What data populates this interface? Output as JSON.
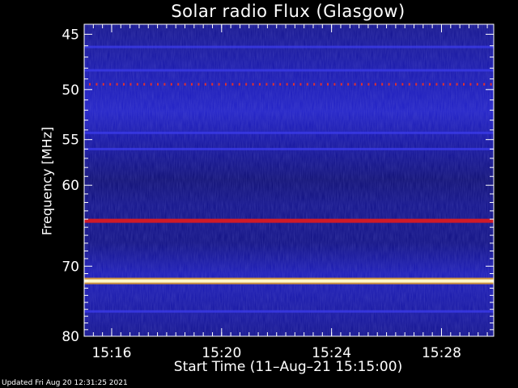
{
  "chart_data": {
    "type": "heatmap",
    "title": "Solar radio Flux (Glasgow)",
    "xlabel": "Start Time (11–Aug–21 15:15:00)",
    "ylabel": "Frequency [MHz]",
    "footer": "Updated Fri Aug 20 12:31:25 2021",
    "x_ticks": [
      "15:16",
      "15:20",
      "15:24",
      "15:28"
    ],
    "y_ticks": [
      45,
      50,
      55,
      60,
      70,
      80
    ],
    "colormap": [
      "#000000",
      "#0a0a6e",
      "#1a1ad2",
      "#c81a2a",
      "#ffd040",
      "#ffffff"
    ],
    "bands": [
      {
        "freq_mhz": 46.1,
        "intensity": "moderate"
      },
      {
        "freq_mhz": 48.2,
        "intensity": "moderate"
      },
      {
        "freq_mhz": 49.5,
        "intensity": "high",
        "pattern": "periodic dots"
      },
      {
        "freq_mhz": 54.3,
        "intensity": "moderate"
      },
      {
        "freq_mhz": 56.0,
        "intensity": "moderate"
      },
      {
        "freq_mhz": 64.2,
        "intensity": "high"
      },
      {
        "freq_mhz": 72.0,
        "intensity": "very high"
      },
      {
        "freq_mhz": 76.3,
        "intensity": "moderate"
      }
    ]
  }
}
